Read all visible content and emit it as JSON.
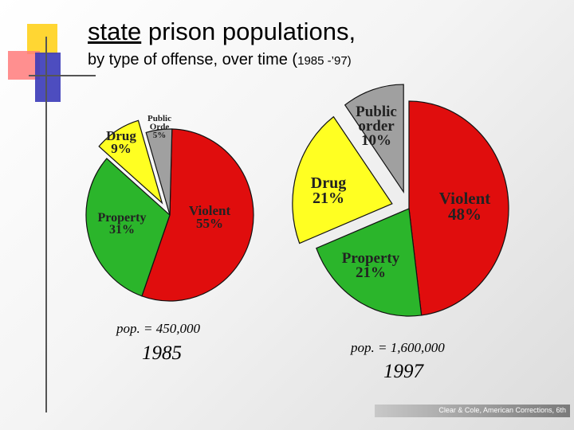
{
  "title_word1": "state",
  "title_rest": "prison populations,",
  "subtitle_main": "by type of offense, over time (",
  "subtitle_years": "1985 -’97)",
  "credit": "Clear & Cole, American Corrections, 6th",
  "colors": {
    "violent": "#e00d0d",
    "property": "#2bb52b",
    "drug": "#ffff22",
    "public_order": "#a0a0a0",
    "deco_yellow": "#ffd633",
    "deco_pink": "#ff7b7b",
    "deco_blue": "#3a3ab8"
  },
  "chart_data": [
    {
      "type": "pie",
      "year_label": "1985",
      "population_label": "pop. = 450,000",
      "slices": [
        {
          "line1": "Violent",
          "line2": "55%",
          "value": 55,
          "color": "#e00d0d",
          "exploded": false
        },
        {
          "line1": "Property",
          "line2": "31%",
          "value": 31,
          "color": "#2bb52b",
          "exploded": false
        },
        {
          "line1": "Drug",
          "line2": "9%",
          "value": 9,
          "color": "#ffff22",
          "exploded": true
        },
        {
          "line1": "Public Orde",
          "line2": "5%",
          "value": 5,
          "color": "#a0a0a0",
          "exploded": false
        }
      ]
    },
    {
      "type": "pie",
      "year_label": "1997",
      "population_label": "pop. = 1,600,000",
      "slices": [
        {
          "line1": "Violent",
          "line2": "48%",
          "value": 48,
          "color": "#e00d0d",
          "exploded": false
        },
        {
          "line1": "Property",
          "line2": "21%",
          "value": 21,
          "color": "#2bb52b",
          "exploded": false
        },
        {
          "line1": "Drug",
          "line2": "21%",
          "value": 21,
          "color": "#ffff22",
          "exploded": true
        },
        {
          "line1": "Public order",
          "line2": "10%",
          "value": 10,
          "color": "#a0a0a0",
          "exploded": true
        }
      ]
    }
  ]
}
